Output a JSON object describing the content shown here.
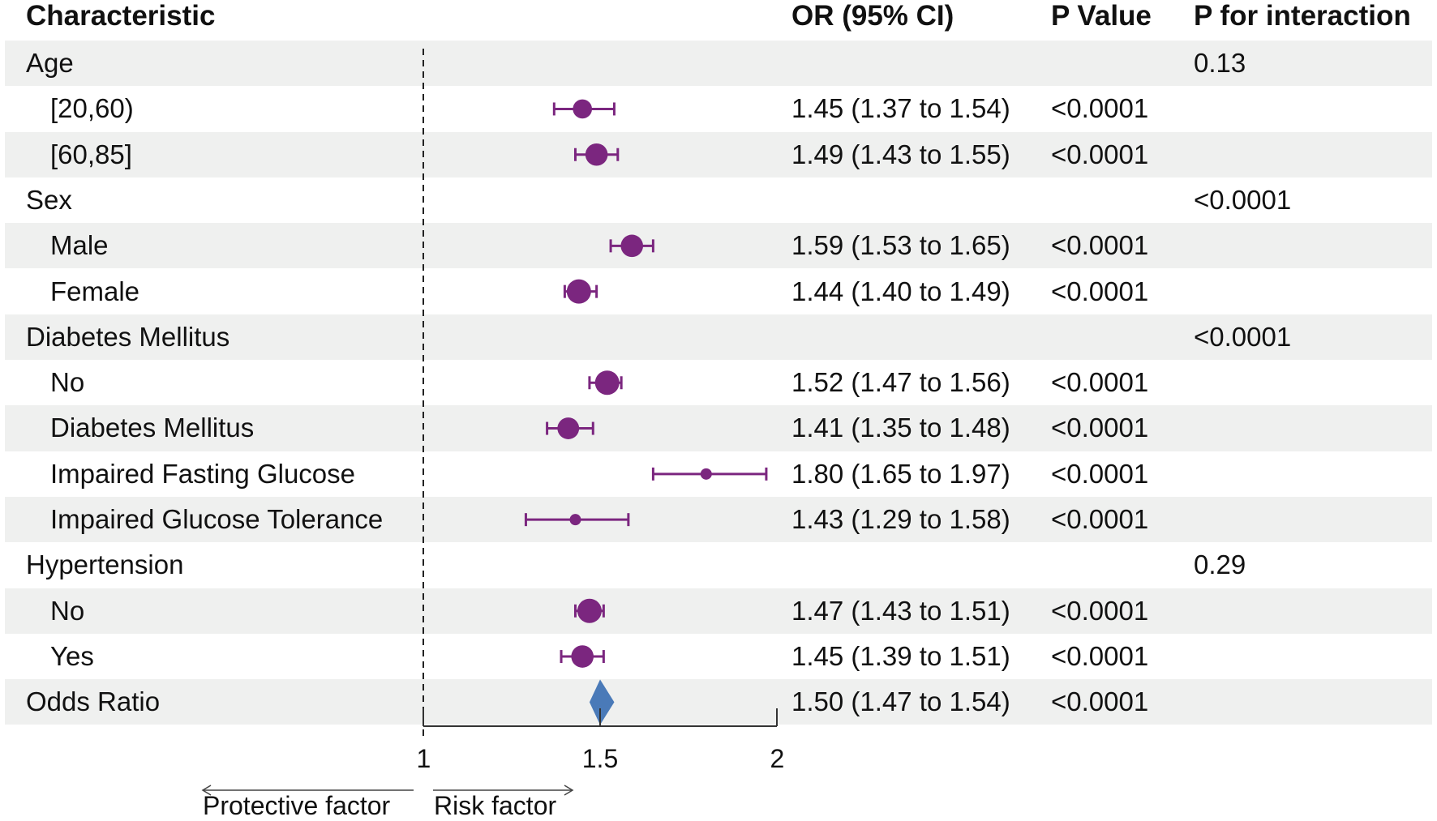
{
  "headers": {
    "characteristic": "Characteristic",
    "or_ci": "OR (95% CI)",
    "p_value": "P Value",
    "p_interaction": "P for interaction"
  },
  "rows": [
    {
      "label": "Age",
      "type": "group",
      "or_ci": "",
      "p": "",
      "p_int": "0.13"
    },
    {
      "label": "[20,60)",
      "type": "sub",
      "or": 1.45,
      "lo": 1.37,
      "hi": 1.54,
      "or_ci": "1.45 (1.37 to 1.54)",
      "p": "<0.0001",
      "p_int": ""
    },
    {
      "label": "[60,85]",
      "type": "sub",
      "or": 1.49,
      "lo": 1.43,
      "hi": 1.55,
      "or_ci": "1.49 (1.43 to 1.55)",
      "p": "<0.0001",
      "p_int": ""
    },
    {
      "label": "Sex",
      "type": "group",
      "or_ci": "",
      "p": "",
      "p_int": "<0.0001"
    },
    {
      "label": "Male",
      "type": "sub",
      "or": 1.59,
      "lo": 1.53,
      "hi": 1.65,
      "or_ci": "1.59 (1.53 to 1.65)",
      "p": "<0.0001",
      "p_int": ""
    },
    {
      "label": "Female",
      "type": "sub",
      "or": 1.44,
      "lo": 1.4,
      "hi": 1.49,
      "or_ci": "1.44 (1.40 to 1.49)",
      "p": "<0.0001",
      "p_int": ""
    },
    {
      "label": "Diabetes Mellitus",
      "type": "group",
      "or_ci": "",
      "p": "",
      "p_int": "<0.0001"
    },
    {
      "label": "No",
      "type": "sub",
      "or": 1.52,
      "lo": 1.47,
      "hi": 1.56,
      "or_ci": "1.52 (1.47 to 1.56)",
      "p": "<0.0001",
      "p_int": ""
    },
    {
      "label": "Diabetes Mellitus",
      "type": "sub",
      "or": 1.41,
      "lo": 1.35,
      "hi": 1.48,
      "or_ci": "1.41 (1.35 to 1.48)",
      "p": "<0.0001",
      "p_int": ""
    },
    {
      "label": "Impaired Fasting Glucose",
      "type": "sub",
      "or": 1.8,
      "lo": 1.65,
      "hi": 1.97,
      "or_ci": "1.80 (1.65 to 1.97)",
      "p": "<0.0001",
      "p_int": ""
    },
    {
      "label": "Impaired Glucose Tolerance",
      "type": "sub",
      "or": 1.43,
      "lo": 1.29,
      "hi": 1.58,
      "or_ci": "1.43 (1.29 to 1.58)",
      "p": "<0.0001",
      "p_int": ""
    },
    {
      "label": "Hypertension",
      "type": "group",
      "or_ci": "",
      "p": "",
      "p_int": "0.29"
    },
    {
      "label": "No",
      "type": "sub",
      "or": 1.47,
      "lo": 1.43,
      "hi": 1.51,
      "or_ci": "1.47 (1.43 to 1.51)",
      "p": "<0.0001",
      "p_int": ""
    },
    {
      "label": "Yes",
      "type": "sub",
      "or": 1.45,
      "lo": 1.39,
      "hi": 1.51,
      "or_ci": "1.45 (1.39 to 1.51)",
      "p": "<0.0001",
      "p_int": ""
    },
    {
      "label": "Odds Ratio",
      "type": "overall",
      "or": 1.5,
      "lo": 1.47,
      "hi": 1.54,
      "or_ci": "1.50 (1.47 to 1.54)",
      "p": "<0.0001",
      "p_int": ""
    }
  ],
  "axis": {
    "ticks": [
      "1",
      "1.5",
      "2"
    ],
    "protective_label": "Protective factor",
    "risk_label": "Risk factor"
  },
  "colors": {
    "point": "#7b267f",
    "diamond": "#4a7ab8",
    "band": "#eff0ef",
    "axis": "#333333"
  },
  "chart_data": {
    "type": "forest",
    "title": "",
    "xlabel": "",
    "x_ticks": [
      1,
      1.5,
      2
    ],
    "xlim": [
      1,
      2
    ],
    "reference_line": 1,
    "series": [
      {
        "name": "[20,60)",
        "or": 1.45,
        "lo": 1.37,
        "hi": 1.54
      },
      {
        "name": "[60,85]",
        "or": 1.49,
        "lo": 1.43,
        "hi": 1.55
      },
      {
        "name": "Male",
        "or": 1.59,
        "lo": 1.53,
        "hi": 1.65
      },
      {
        "name": "Female",
        "or": 1.44,
        "lo": 1.4,
        "hi": 1.49
      },
      {
        "name": "No (Diabetes Mellitus)",
        "or": 1.52,
        "lo": 1.47,
        "hi": 1.56
      },
      {
        "name": "Diabetes Mellitus",
        "or": 1.41,
        "lo": 1.35,
        "hi": 1.48
      },
      {
        "name": "Impaired Fasting Glucose",
        "or": 1.8,
        "lo": 1.65,
        "hi": 1.97
      },
      {
        "name": "Impaired Glucose Tolerance",
        "or": 1.43,
        "lo": 1.29,
        "hi": 1.58
      },
      {
        "name": "No (Hypertension)",
        "or": 1.47,
        "lo": 1.43,
        "hi": 1.51
      },
      {
        "name": "Yes",
        "or": 1.45,
        "lo": 1.39,
        "hi": 1.51
      },
      {
        "name": "Odds Ratio",
        "or": 1.5,
        "lo": 1.47,
        "hi": 1.54
      }
    ]
  }
}
